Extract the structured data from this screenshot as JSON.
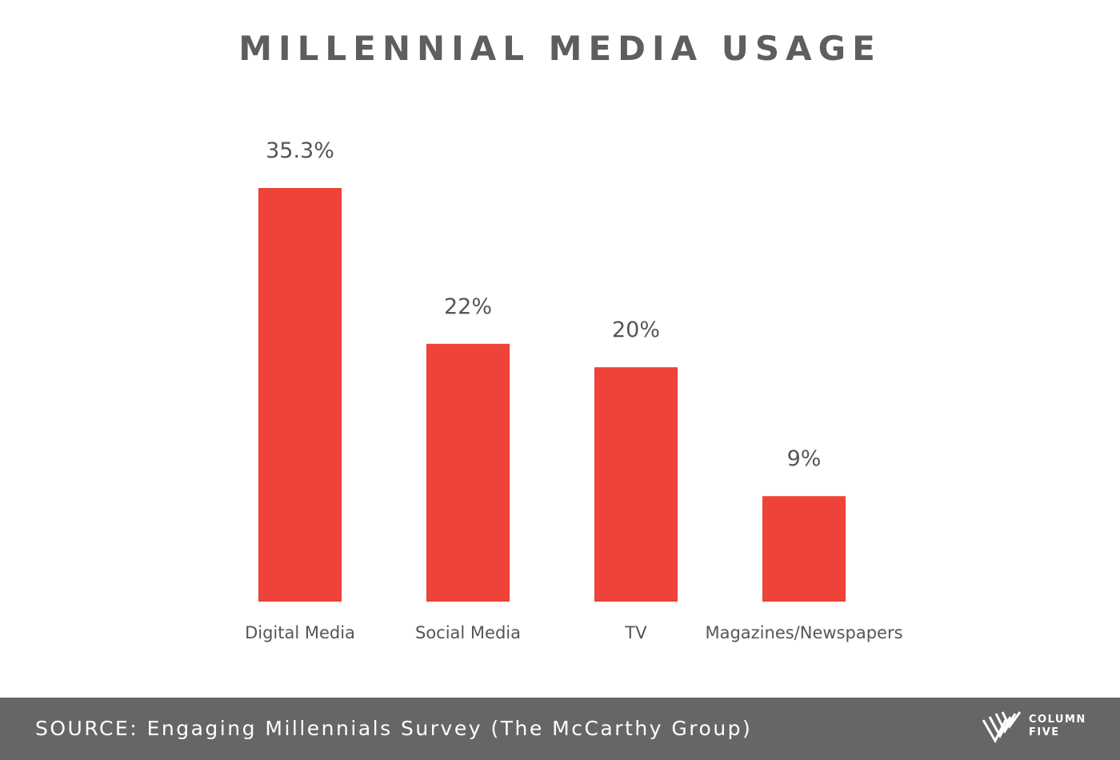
{
  "chart_data": {
    "type": "bar",
    "title": "MILLENNIAL MEDIA USAGE",
    "categories": [
      "Digital Media",
      "Social Media",
      "TV",
      "Magazines/Newspapers"
    ],
    "values": [
      35.3,
      22,
      20,
      9
    ],
    "value_labels": [
      "35.3%",
      "22%",
      "20%",
      "9%"
    ],
    "xlabel": "",
    "ylabel": "",
    "ylim": [
      0,
      35.3
    ],
    "grid": false,
    "legend": "none",
    "bar_color": "#ef4238"
  },
  "footer": {
    "source": "SOURCE: Engaging Millennials Survey (The McCarthy Group)",
    "logo_line1": "COLUMN",
    "logo_line2": "FIVE",
    "background_color": "#666666"
  },
  "colors": {
    "title": "#5e5e5e",
    "text": "#555555",
    "background": "#ffffff"
  }
}
